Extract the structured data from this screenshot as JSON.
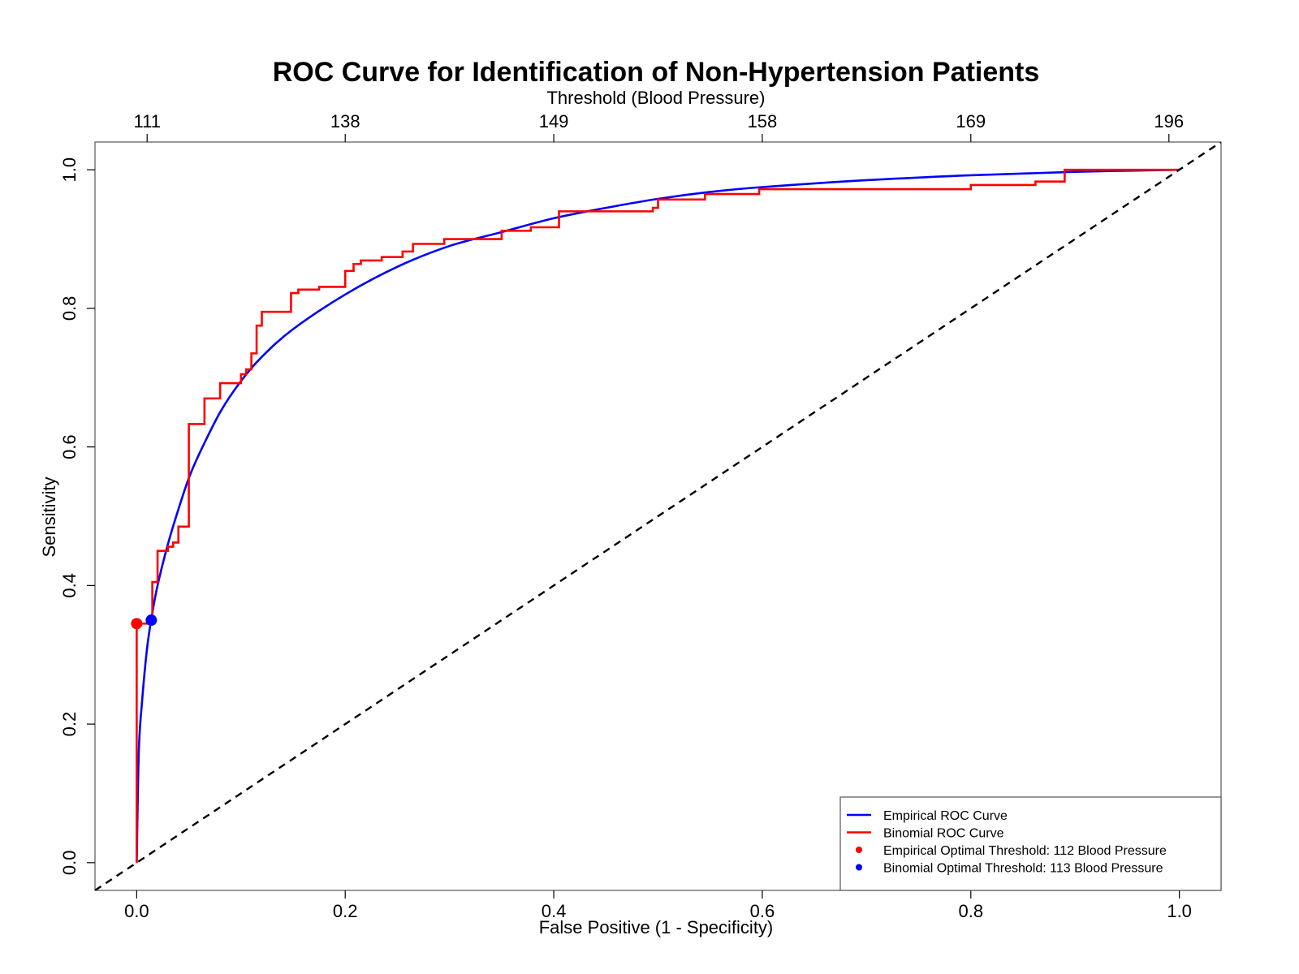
{
  "chart_data": {
    "type": "line",
    "title": "ROC Curve for Identification of Non-Hypertension Patients",
    "xlabel": "False Positive (1 - Specificity)",
    "ylabel": "Sensitivity",
    "top_axis_label": "Threshold (Blood Pressure)",
    "xlim": [
      -0.04,
      1.04
    ],
    "ylim": [
      -0.04,
      1.04
    ],
    "x_ticks": [
      0.0,
      0.2,
      0.4,
      0.6,
      0.8,
      1.0
    ],
    "x_tick_labels": [
      "0.0",
      "0.2",
      "0.4",
      "0.6",
      "0.8",
      "1.0"
    ],
    "y_ticks": [
      0.0,
      0.2,
      0.4,
      0.6,
      0.8,
      1.0
    ],
    "y_tick_labels": [
      "0.0",
      "0.2",
      "0.4",
      "0.6",
      "0.8",
      "1.0"
    ],
    "top_ticks": [
      0.01,
      0.2,
      0.4,
      0.6,
      0.8,
      0.99
    ],
    "top_tick_labels": [
      "111",
      "138",
      "149",
      "158",
      "169",
      "196"
    ],
    "grid": false,
    "legend_position": "bottom-right",
    "series": [
      {
        "name": "Empirical ROC Curve",
        "color": "#0000ff",
        "style": "smooth",
        "x": [
          0,
          0.002,
          0.005,
          0.01,
          0.015,
          0.02,
          0.03,
          0.04,
          0.05,
          0.06,
          0.08,
          0.1,
          0.12,
          0.15,
          0.2,
          0.25,
          0.3,
          0.35,
          0.4,
          0.45,
          0.5,
          0.55,
          0.6,
          0.7,
          0.8,
          0.9,
          1.0
        ],
        "y": [
          0,
          0.16,
          0.23,
          0.31,
          0.36,
          0.4,
          0.46,
          0.51,
          0.555,
          0.59,
          0.65,
          0.695,
          0.73,
          0.77,
          0.82,
          0.86,
          0.89,
          0.91,
          0.93,
          0.945,
          0.958,
          0.968,
          0.975,
          0.985,
          0.992,
          0.997,
          1.0
        ]
      },
      {
        "name": "Binomial ROC Curve",
        "color": "#ff0000",
        "style": "step",
        "x": [
          0,
          0,
          0.015,
          0.015,
          0.02,
          0.02,
          0.03,
          0.03,
          0.035,
          0.035,
          0.04,
          0.04,
          0.05,
          0.05,
          0.065,
          0.065,
          0.08,
          0.08,
          0.1,
          0.1,
          0.105,
          0.105,
          0.11,
          0.11,
          0.115,
          0.115,
          0.12,
          0.12,
          0.148,
          0.148,
          0.155,
          0.155,
          0.175,
          0.175,
          0.2,
          0.2,
          0.208,
          0.208,
          0.215,
          0.215,
          0.235,
          0.235,
          0.255,
          0.255,
          0.265,
          0.265,
          0.295,
          0.295,
          0.35,
          0.35,
          0.378,
          0.378,
          0.405,
          0.405,
          0.495,
          0.495,
          0.5,
          0.5,
          0.545,
          0.545,
          0.597,
          0.597,
          0.8,
          0.8,
          0.862,
          0.862,
          0.89,
          0.89,
          1.0
        ],
        "y": [
          0,
          0.345,
          0.345,
          0.405,
          0.405,
          0.45,
          0.45,
          0.456,
          0.456,
          0.462,
          0.462,
          0.485,
          0.485,
          0.633,
          0.633,
          0.67,
          0.67,
          0.692,
          0.692,
          0.705,
          0.705,
          0.712,
          0.712,
          0.735,
          0.735,
          0.775,
          0.775,
          0.795,
          0.795,
          0.822,
          0.822,
          0.827,
          0.827,
          0.831,
          0.831,
          0.854,
          0.854,
          0.864,
          0.864,
          0.869,
          0.869,
          0.874,
          0.874,
          0.882,
          0.882,
          0.893,
          0.893,
          0.9,
          0.9,
          0.912,
          0.912,
          0.917,
          0.917,
          0.94,
          0.94,
          0.945,
          0.945,
          0.957,
          0.957,
          0.965,
          0.965,
          0.972,
          0.972,
          0.978,
          0.978,
          0.983,
          0.983,
          1.0,
          1.0
        ]
      },
      {
        "name": "Reference Line",
        "color": "#000000",
        "style": "dashed",
        "x": [
          -0.04,
          1.04
        ],
        "y": [
          -0.04,
          1.04
        ]
      }
    ],
    "points": [
      {
        "name": "Empirical Optimal Threshold: 112 Blood Pressure",
        "x": 0.0,
        "y": 0.345,
        "color": "#ff0000"
      },
      {
        "name": "Binomial Optimal Threshold: 113 Blood Pressure",
        "x": 0.014,
        "y": 0.35,
        "color": "#0000ff"
      }
    ],
    "legend": [
      {
        "label": "Empirical ROC Curve",
        "kind": "line",
        "color": "#0000ff"
      },
      {
        "label": "Binomial ROC Curve",
        "kind": "line",
        "color": "#ff0000"
      },
      {
        "label": "Empirical Optimal Threshold: 112 Blood Pressure",
        "kind": "point",
        "color": "#ff0000"
      },
      {
        "label": "Binomial Optimal Threshold: 113 Blood Pressure",
        "kind": "point",
        "color": "#0000ff"
      }
    ]
  }
}
